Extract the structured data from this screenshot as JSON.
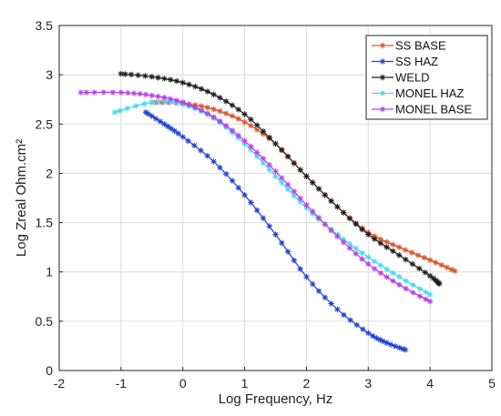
{
  "chart_data": {
    "type": "line",
    "xlabel": "Log Frequency, Hz",
    "ylabel": "Log Zreal Ohm.cm²",
    "xlim": [
      -2,
      5
    ],
    "ylim": [
      0,
      3.5
    ],
    "xticks": [
      -2,
      -1,
      0,
      1,
      2,
      3,
      4,
      5
    ],
    "yticks": [
      0,
      0.5,
      1,
      1.5,
      2,
      2.5,
      3,
      3.5
    ],
    "grid": true,
    "legend_position": "top-right",
    "marker": "asterisk",
    "series": [
      {
        "name": "SS BASE",
        "color": "#d9542b",
        "x": [
          -0.5,
          0,
          0.5,
          1,
          1.5,
          2,
          2.5,
          3,
          3.5,
          4,
          4.4
        ],
        "y": [
          2.72,
          2.71,
          2.65,
          2.52,
          2.3,
          1.97,
          1.66,
          1.4,
          1.25,
          1.12,
          1.01
        ]
      },
      {
        "name": "SS HAZ",
        "color": "#1f3ecf",
        "x": [
          -0.6,
          -0.3,
          0,
          0.5,
          1,
          1.5,
          2,
          2.5,
          3,
          3.3,
          3.6
        ],
        "y": [
          2.62,
          2.5,
          2.37,
          2.12,
          1.78,
          1.38,
          0.95,
          0.62,
          0.38,
          0.28,
          0.21
        ]
      },
      {
        "name": "WELD",
        "color": "#1a1a1a",
        "x": [
          -1,
          -0.5,
          0,
          0.5,
          1,
          1.5,
          2,
          2.5,
          3,
          3.5,
          4,
          4.15
        ],
        "y": [
          3.01,
          2.98,
          2.92,
          2.8,
          2.6,
          2.3,
          1.97,
          1.66,
          1.38,
          1.17,
          0.96,
          0.88
        ]
      },
      {
        "name": "MONEL HAZ",
        "color": "#45d7f2",
        "x": [
          -1.1,
          -0.5,
          0,
          0.5,
          1,
          1.5,
          2,
          2.5,
          3,
          3.5,
          4
        ],
        "y": [
          2.62,
          2.72,
          2.7,
          2.56,
          2.3,
          1.97,
          1.65,
          1.38,
          1.15,
          0.95,
          0.77
        ]
      },
      {
        "name": "MONEL BASE",
        "color": "#b43ee8",
        "x": [
          -1.65,
          -1,
          -0.5,
          0,
          0.5,
          1,
          1.5,
          2,
          2.5,
          3,
          3.5,
          4
        ],
        "y": [
          2.82,
          2.82,
          2.79,
          2.72,
          2.57,
          2.33,
          2.02,
          1.68,
          1.36,
          1.08,
          0.87,
          0.7
        ]
      }
    ]
  }
}
